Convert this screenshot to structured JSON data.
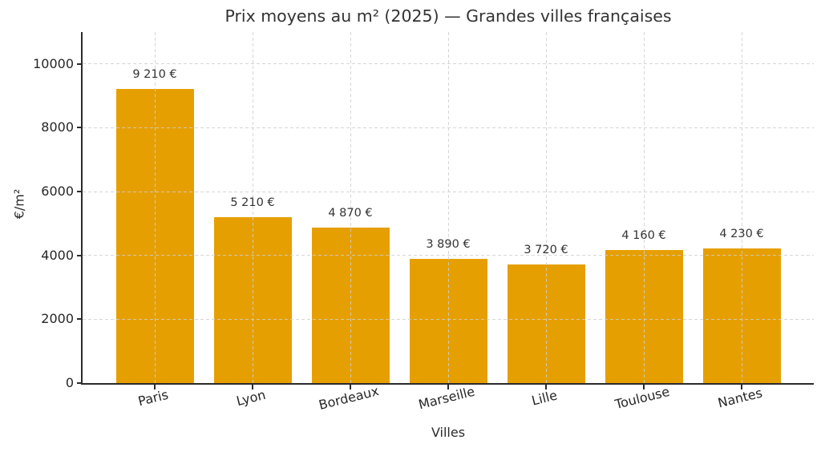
{
  "chart_data": {
    "type": "bar",
    "title": "Prix moyens au m² (2025) — Grandes villes françaises",
    "xlabel": "Villes",
    "ylabel": "€/m²",
    "categories": [
      "Paris",
      "Lyon",
      "Bordeaux",
      "Marseille",
      "Lille",
      "Toulouse",
      "Nantes"
    ],
    "values": [
      9210,
      5210,
      4870,
      3890,
      3720,
      4160,
      4230
    ],
    "bar_labels": [
      "9 210 €",
      "5 210 €",
      "4 870 €",
      "3 890 €",
      "3 720 €",
      "4 160 €",
      "4 230 €"
    ],
    "yticks": [
      0,
      2000,
      4000,
      6000,
      8000,
      10000
    ],
    "ytick_labels": [
      "0",
      "2000",
      "4000",
      "6000",
      "8000",
      "10000"
    ],
    "ylim": [
      0,
      11000
    ],
    "grid": true,
    "legend": "none",
    "colors": {
      "bar": "#E69F00",
      "grid": "#cfcfcf",
      "axis": "#2b2b2b",
      "text": "#333333",
      "tick_text": "#262626",
      "background": "#ffffff"
    }
  }
}
